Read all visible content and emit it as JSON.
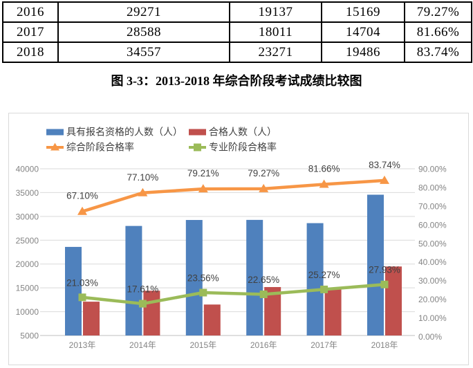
{
  "document": {
    "table": {
      "rows": [
        [
          "2016",
          "29271",
          "19137",
          "15169",
          "79.27%"
        ],
        [
          "2017",
          "28588",
          "18011",
          "14704",
          "81.66%"
        ],
        [
          "2018",
          "34557",
          "23271",
          "19486",
          "83.74%"
        ]
      ]
    },
    "caption": "图 3-3：2013-2018 年综合阶段考试成绩比较图"
  },
  "chart_data": {
    "type": "combo-bar-line",
    "categories": [
      "2013年",
      "2014年",
      "2015年",
      "2016年",
      "2017年",
      "2018年"
    ],
    "series": [
      {
        "name": "具有报名资格的人数（人）",
        "chart_type": "bar",
        "axis": "left",
        "color": "#4F81BD",
        "values": [
          23600,
          28000,
          29250,
          29271,
          28588,
          34557
        ]
      },
      {
        "name": "合格人数（人）",
        "chart_type": "bar",
        "axis": "left",
        "color": "#C0504D",
        "values": [
          12100,
          14400,
          11500,
          15169,
          14704,
          19486
        ]
      },
      {
        "name": "综合阶段合格率",
        "chart_type": "line",
        "marker": "triangle",
        "axis": "right",
        "color": "#F79646",
        "values": [
          67.1,
          77.1,
          79.21,
          79.27,
          81.66,
          83.74
        ],
        "point_labels": [
          "67.10%",
          "77.10%",
          "79.21%",
          "79.27%",
          "81.66%",
          "83.74%"
        ]
      },
      {
        "name": "专业阶段合格率",
        "chart_type": "line",
        "marker": "square",
        "axis": "right",
        "color": "#9BBB59",
        "values": [
          21.03,
          17.61,
          23.56,
          22.65,
          25.27,
          27.93
        ],
        "point_labels": [
          "21.03%",
          "17.61%",
          "23.56%",
          "22.65%",
          "25.27%",
          "27.93%"
        ]
      }
    ],
    "left_axis": {
      "min": 5000,
      "max": 40000,
      "step": 5000,
      "tick_labels": [
        "5000",
        "10000",
        "15000",
        "20000",
        "25000",
        "30000",
        "35000",
        "40000"
      ]
    },
    "right_axis": {
      "min": 0,
      "max": 90,
      "step": 10,
      "tick_labels": [
        "0.00%",
        "10.00%",
        "20.00%",
        "30.00%",
        "40.00%",
        "50.00%",
        "60.00%",
        "70.00%",
        "80.00%",
        "90.00%"
      ]
    },
    "legend_position": "top",
    "gridlines": "horizontal",
    "grid_color": "#D9D9D9",
    "baseline_color": "#BFBFBF",
    "axis_text_color": "#848484",
    "label_text_color": "#404040"
  }
}
